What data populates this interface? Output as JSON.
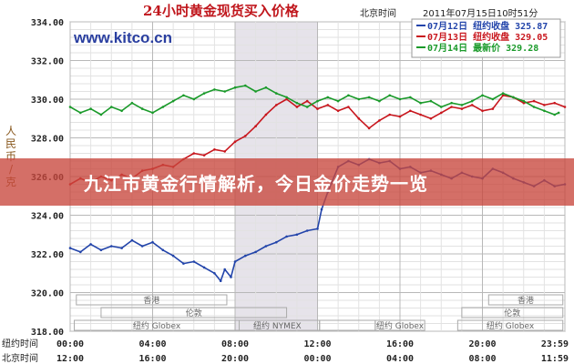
{
  "header": {
    "title": "24小时黄金现货买入价格",
    "beijing_label": "北京时间",
    "datetime": "2011年07月15日10时51分",
    "site": "www.kitco.cn"
  },
  "legend": [
    {
      "date": "07月12日",
      "label": "纽约收盘",
      "value": "325.87",
      "color": "#2244aa"
    },
    {
      "date": "07月13日",
      "label": "纽约收盘",
      "value": "329.05",
      "color": "#c8161d"
    },
    {
      "date": "07月14日",
      "label": "最新价",
      "value": "329.28",
      "color": "#1a9a2a"
    }
  ],
  "y_axis_title": "人民币/克",
  "row_labels": {
    "ny": "纽约时间",
    "bj": "北京时间"
  },
  "markets": {
    "hongkong": "香港",
    "london": "伦敦",
    "nyse_globex": "纽约 Globex",
    "ny_nymex": "纽约 NYMEX"
  },
  "banner": {
    "text": "九江市黄金行情解析，今日金价走势一览"
  },
  "chart_data": {
    "type": "line",
    "title": "24小时黄金现货买入价格",
    "ylabel": "人民币/克",
    "ylim": [
      318,
      334
    ],
    "yticks": [
      "318.00",
      "320.00",
      "322.00",
      "324.00",
      "326.00",
      "328.00",
      "330.00",
      "332.00",
      "334.00"
    ],
    "x_ticks_ny": [
      "00:00",
      "04:00",
      "08:00",
      "12:00",
      "16:00",
      "20:00",
      "23:59"
    ],
    "x_ticks_bj": [
      "12:00",
      "16:00",
      "20:00",
      "00:00",
      "04:00",
      "08:00",
      "11:59"
    ],
    "x_hours": [
      0,
      4,
      8,
      12,
      16,
      20,
      24
    ],
    "shaded_range_hours": [
      8,
      12
    ],
    "grid": true,
    "legend_position": "top-right",
    "series": [
      {
        "name": "07月12日 纽约收盘 325.87",
        "color": "#2244aa",
        "x": [
          0,
          0.5,
          1,
          1.5,
          2,
          2.5,
          3,
          3.5,
          4,
          4.5,
          5,
          5.5,
          6,
          6.5,
          7,
          7.3,
          7.5,
          7.8,
          8,
          8.5,
          9,
          9.5,
          10,
          10.5,
          11,
          11.5,
          12,
          12.2,
          12.5,
          13,
          13.5,
          14,
          14.5,
          15,
          15.5,
          16,
          16.5,
          17,
          17.5,
          18,
          18.5,
          19,
          19.5,
          20,
          20.5,
          21,
          21.5,
          22,
          22.5,
          23,
          23.5,
          24
        ],
        "values": [
          322.3,
          322.1,
          322.5,
          322.2,
          322.4,
          322.3,
          322.7,
          322.4,
          322.6,
          322.2,
          321.9,
          321.5,
          321.6,
          321.3,
          321.0,
          320.6,
          321.2,
          320.8,
          321.6,
          321.9,
          322.1,
          322.4,
          322.6,
          322.9,
          323.0,
          323.2,
          323.3,
          324.3,
          325.2,
          326.5,
          326.8,
          326.6,
          326.9,
          326.7,
          326.8,
          326.4,
          326.5,
          326.2,
          326.3,
          326.1,
          325.9,
          326.2,
          326.0,
          325.9,
          326.4,
          326.2,
          325.9,
          325.7,
          325.5,
          325.8,
          325.5,
          325.6
        ]
      },
      {
        "name": "07月13日 纽约收盘 329.05",
        "color": "#c8161d",
        "x": [
          0,
          0.5,
          1,
          1.5,
          2,
          2.5,
          3,
          3.5,
          4,
          4.5,
          5,
          5.5,
          6,
          6.5,
          7,
          7.5,
          8,
          8.5,
          9,
          9.5,
          10,
          10.5,
          11,
          11.5,
          12,
          12.5,
          13,
          13.5,
          14,
          14.5,
          15,
          15.5,
          16,
          16.5,
          17,
          17.5,
          18,
          18.5,
          19,
          19.5,
          20,
          20.5,
          21,
          21.5,
          22,
          22.5,
          23,
          23.5,
          24
        ],
        "values": [
          325.6,
          325.9,
          325.7,
          326.0,
          325.8,
          326.1,
          325.9,
          326.3,
          326.4,
          326.6,
          326.5,
          326.9,
          327.2,
          327.1,
          327.4,
          327.3,
          327.8,
          328.1,
          328.6,
          329.2,
          329.7,
          330.0,
          329.6,
          329.9,
          329.5,
          329.7,
          329.4,
          329.6,
          329.0,
          328.5,
          328.9,
          329.2,
          329.1,
          329.4,
          329.2,
          329.0,
          329.3,
          329.6,
          329.5,
          329.7,
          329.4,
          329.5,
          330.2,
          330.1,
          329.8,
          329.9,
          329.7,
          329.8,
          329.6
        ]
      },
      {
        "name": "07月14日 最新价 329.28",
        "color": "#1a9a2a",
        "x": [
          0,
          0.5,
          1,
          1.5,
          2,
          2.5,
          3,
          3.5,
          4,
          4.5,
          5,
          5.5,
          6,
          6.5,
          7,
          7.5,
          8,
          8.5,
          9,
          9.5,
          10,
          10.5,
          11,
          11.5,
          12,
          12.5,
          13,
          13.5,
          14,
          14.5,
          15,
          15.5,
          16,
          16.5,
          17,
          17.5,
          18,
          18.5,
          19,
          19.5,
          20,
          20.5,
          21,
          21.5,
          22,
          22.5,
          23,
          23.5,
          23.7
        ],
        "values": [
          329.6,
          329.3,
          329.5,
          329.2,
          329.6,
          329.4,
          329.8,
          329.5,
          329.3,
          329.6,
          329.9,
          330.2,
          330.0,
          330.3,
          330.5,
          330.4,
          330.6,
          330.7,
          330.4,
          330.6,
          330.3,
          330.1,
          329.8,
          329.6,
          329.9,
          330.1,
          329.9,
          330.2,
          330.0,
          330.1,
          329.9,
          330.2,
          330.0,
          330.1,
          329.8,
          329.9,
          329.6,
          329.8,
          329.7,
          329.9,
          330.2,
          330.0,
          330.3,
          330.1,
          329.9,
          329.6,
          329.4,
          329.2,
          329.3
        ]
      }
    ]
  }
}
